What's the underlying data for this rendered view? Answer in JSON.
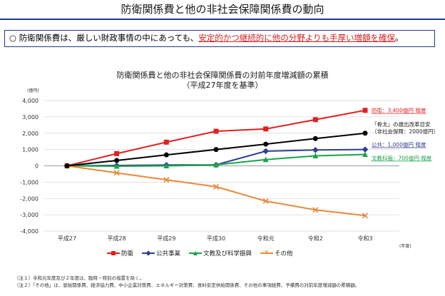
{
  "header": {
    "title": "防衛関係費と他の非社会保障関係費の動向"
  },
  "summary": {
    "bullet": "○",
    "text_before": "防衛関係費は、厳しい財政事情の中にあっても、",
    "highlight": "安定的かつ継続的に他の分野よりも手厚い増額を確保",
    "text_after": "。"
  },
  "chart_data": {
    "type": "line",
    "title": "防衛関係費と他の非社会保障関係費の対前年度増減額の累積",
    "subtitle": "（平成27年度を基準）",
    "ylabel": "(億円)",
    "xlabel": "(年度)",
    "ylim": [
      -4000,
      4000
    ],
    "yticks": [
      -4000,
      -3000,
      -2000,
      -1000,
      0,
      1000,
      2000,
      3000,
      4000
    ],
    "ytick_labels": [
      "-4,000",
      "-3,000",
      "-2,000",
      "-1,000",
      "0",
      "1,000",
      "2,000",
      "3,000",
      "4,000"
    ],
    "categories": [
      "平成27",
      "平成28",
      "平成29",
      "平成30",
      "令和元",
      "令和2",
      "令和3"
    ],
    "series": [
      {
        "name": "防衛",
        "color": "#e02020",
        "marker": "square",
        "values": [
          0,
          750,
          1450,
          2120,
          2260,
          2830,
          3400
        ]
      },
      {
        "name": "公共事業",
        "color": "#2e3f8f",
        "marker": "diamond",
        "values": [
          0,
          20,
          50,
          60,
          900,
          970,
          1000
        ]
      },
      {
        "name": "文教及び科学振興",
        "color": "#1aa34a",
        "marker": "triangle",
        "values": [
          0,
          -20,
          0,
          60,
          380,
          610,
          700
        ]
      },
      {
        "name": "その他",
        "color": "#e8893a",
        "marker": "x",
        "values": [
          0,
          -430,
          -860,
          -1280,
          -2160,
          -2700,
          -3050
        ]
      },
      {
        "name": "骨太の歳出改革目安",
        "color": "#000000",
        "marker": "circle",
        "legend": false,
        "values": [
          0,
          330,
          670,
          1000,
          1330,
          1670,
          2000
        ]
      }
    ],
    "annotations": [
      {
        "text": "防衛：3,400億円 程度",
        "color": "#e02020",
        "series_index": 0,
        "underline": true
      },
      {
        "text": "「骨太」の歳出改革目安",
        "color": "#222222",
        "series_index": 4,
        "line": 1
      },
      {
        "text": "（非社会保障：2000億円）",
        "color": "#222222",
        "series_index": 4,
        "line": 2
      },
      {
        "text": "公共：1,000億円 程度",
        "color": "#2e3f8f",
        "series_index": 1,
        "underline": true
      },
      {
        "text": "文教科振：700億円 程度",
        "color": "#1aa34a",
        "series_index": 2,
        "underline": true
      }
    ]
  },
  "notes": [
    "（注１）令和元年度及び２年度は、臨時・特別の措置を除く。",
    "（注２）「その他」は、恩給関係費、経済協力費、中小企業対策費、エネルギー対策費、食料安定供給関係費、その他の事項経費、予備費の対前年度増減額の累積額。"
  ]
}
